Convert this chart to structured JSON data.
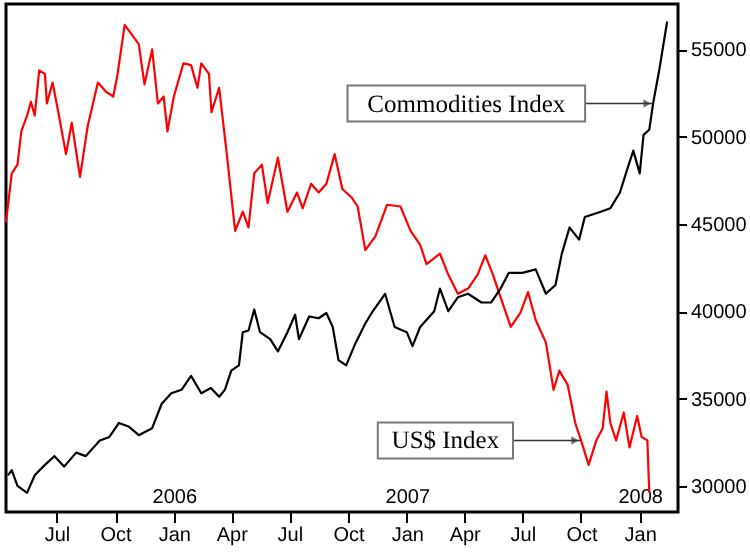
{
  "chart_data": {
    "type": "line",
    "x2lim": [
      "2005-04-13",
      "2008-03-01"
    ],
    "x2ticks": [
      {
        "value": "2006-01-01",
        "label": "2006"
      },
      {
        "value": "2007-01-01",
        "label": "2007"
      },
      {
        "value": "2008-01-01",
        "label": "2008"
      }
    ],
    "xlim": [
      "2005-04-13",
      "2008-03-01"
    ],
    "xticks": [
      {
        "value": "2005-07-01",
        "label": "Jul"
      },
      {
        "value": "2005-10-01",
        "label": "Oct"
      },
      {
        "value": "2006-01-01",
        "label": "Jan"
      },
      {
        "value": "2006-04-01",
        "label": "Apr"
      },
      {
        "value": "2006-07-01",
        "label": "Jul"
      },
      {
        "value": "2006-10-01",
        "label": "Oct"
      },
      {
        "value": "2007-01-01",
        "label": "Jan"
      },
      {
        "value": "2007-04-01",
        "label": "Apr"
      },
      {
        "value": "2007-07-01",
        "label": "Jul"
      },
      {
        "value": "2007-10-01",
        "label": "Oct"
      },
      {
        "value": "2008-01-01",
        "label": "Jan"
      }
    ],
    "ylim": [
      28500,
      57600
    ],
    "yticks": [
      30000,
      35000,
      40000,
      45000,
      50000,
      55000
    ],
    "legend": false,
    "series": [
      {
        "color": "#ff0000",
        "x": [
          "2005-04-13",
          "2005-04-22",
          "2005-05-01",
          "2005-05-07",
          "2005-05-16",
          "2005-05-22",
          "2005-05-28",
          "2005-06-04",
          "2005-06-13",
          "2005-06-16",
          "2005-06-25",
          "2005-07-04",
          "2005-07-16",
          "2005-07-25",
          "2005-08-07",
          "2005-08-19",
          "2005-09-04",
          "2005-09-16",
          "2005-09-28",
          "2005-10-04",
          "2005-10-16",
          "2005-10-28",
          "2005-11-07",
          "2005-11-16",
          "2005-11-28",
          "2005-12-07",
          "2005-12-16",
          "2005-12-22",
          "2006-01-01",
          "2006-01-16",
          "2006-01-28",
          "2006-02-07",
          "2006-02-13",
          "2006-02-25",
          "2006-03-01",
          "2006-03-13",
          "2006-03-25",
          "2006-04-07",
          "2006-04-19",
          "2006-04-28",
          "2006-05-07",
          "2006-05-19",
          "2006-05-28",
          "2006-06-13",
          "2006-06-28",
          "2006-07-13",
          "2006-07-22",
          "2006-08-04",
          "2006-08-16",
          "2006-08-28",
          "2006-09-10",
          "2006-09-22",
          "2006-10-07",
          "2006-10-16",
          "2006-10-28",
          "2006-11-13",
          "2006-12-01",
          "2006-12-22",
          "2007-01-07",
          "2007-01-22",
          "2007-02-01",
          "2007-02-22",
          "2007-03-07",
          "2007-03-22",
          "2007-04-07",
          "2007-04-22",
          "2007-05-04",
          "2007-05-16",
          "2007-05-28",
          "2007-06-13",
          "2007-06-28",
          "2007-07-10",
          "2007-07-22",
          "2007-08-07",
          "2007-08-19",
          "2007-08-28",
          "2007-09-10",
          "2007-09-22",
          "2007-10-01",
          "2007-10-13",
          "2007-10-25",
          "2007-11-04",
          "2007-11-10",
          "2007-11-16",
          "2007-11-25",
          "2007-12-07",
          "2007-12-16",
          "2007-12-28",
          "2008-01-04",
          "2008-01-13",
          "2008-01-16"
        ],
        "values": [
          45100,
          47900,
          48400,
          50300,
          51200,
          52000,
          51200,
          53800,
          53600,
          51900,
          53100,
          51400,
          49000,
          50800,
          47700,
          50600,
          53100,
          52600,
          52300,
          53400,
          56400,
          55800,
          55300,
          53000,
          55000,
          51900,
          52300,
          50300,
          52300,
          54200,
          54100,
          52800,
          54200,
          53600,
          51400,
          52800,
          49000,
          44600,
          45700,
          44800,
          47900,
          48400,
          46200,
          48800,
          45700,
          46800,
          45900,
          47300,
          46800,
          47300,
          49000,
          47000,
          46500,
          46000,
          43500,
          44300,
          46100,
          46000,
          44600,
          43800,
          42700,
          43300,
          42100,
          41000,
          41300,
          42100,
          43200,
          42100,
          40800,
          39100,
          39900,
          41100,
          39500,
          38200,
          35500,
          36600,
          35800,
          33600,
          32600,
          31200,
          32600,
          33300,
          35400,
          33600,
          32600,
          34200,
          32200,
          34000,
          32800,
          32600,
          29600
        ]
      },
      {
        "color": "#000000",
        "x": [
          "2005-04-16",
          "2005-04-22",
          "2005-05-01",
          "2005-05-16",
          "2005-05-28",
          "2005-06-13",
          "2005-06-28",
          "2005-07-13",
          "2005-08-01",
          "2005-08-16",
          "2005-09-07",
          "2005-09-22",
          "2005-10-07",
          "2005-10-22",
          "2005-11-07",
          "2005-11-28",
          "2005-12-13",
          "2005-12-28",
          "2006-01-13",
          "2006-01-28",
          "2006-02-13",
          "2006-02-28",
          "2006-03-13",
          "2006-03-22",
          "2006-04-01",
          "2006-04-13",
          "2006-04-19",
          "2006-04-28",
          "2006-05-07",
          "2006-05-16",
          "2006-06-01",
          "2006-06-13",
          "2006-06-28",
          "2006-07-10",
          "2006-07-16",
          "2006-08-01",
          "2006-08-16",
          "2006-08-28",
          "2006-09-07",
          "2006-09-16",
          "2006-09-28",
          "2006-10-13",
          "2006-10-28",
          "2006-11-07",
          "2006-11-28",
          "2006-12-13",
          "2007-01-01",
          "2007-01-10",
          "2007-01-22",
          "2007-02-13",
          "2007-02-22",
          "2007-03-07",
          "2007-03-22",
          "2007-04-07",
          "2007-04-28",
          "2007-05-13",
          "2007-05-28",
          "2007-06-10",
          "2007-07-01",
          "2007-07-22",
          "2007-08-07",
          "2007-08-22",
          "2007-09-01",
          "2007-09-13",
          "2007-09-28",
          "2007-10-07",
          "2007-11-01",
          "2007-11-16",
          "2007-12-01",
          "2007-12-13",
          "2007-12-22",
          "2008-01-01",
          "2008-01-07",
          "2008-01-16",
          "2008-01-22",
          "2008-02-01",
          "2008-02-13"
        ],
        "values": [
          30600,
          30900,
          30000,
          29600,
          30600,
          31200,
          31700,
          31100,
          31900,
          31700,
          32600,
          32800,
          33600,
          33400,
          32900,
          33300,
          34700,
          35300,
          35500,
          36300,
          35300,
          35600,
          35100,
          35500,
          36600,
          36900,
          38800,
          38900,
          40100,
          38800,
          38400,
          37700,
          38800,
          39800,
          38400,
          39700,
          39600,
          39900,
          39100,
          37200,
          36900,
          38200,
          39300,
          39900,
          41000,
          39100,
          38800,
          38000,
          39100,
          40000,
          41300,
          40000,
          40800,
          41000,
          40500,
          40500,
          41300,
          42200,
          42200,
          42400,
          41000,
          41500,
          43300,
          44800,
          44100,
          45400,
          45700,
          45900,
          46800,
          48200,
          49200,
          47900,
          50100,
          50400,
          51900,
          53900,
          56600
        ]
      }
    ],
    "annotations": [
      {
        "text": "Commodities Index",
        "x": "2008-01-22",
        "y": 51900
      },
      {
        "text": "US$ Index",
        "x": "2007-10-01",
        "y": 32600
      }
    ]
  }
}
